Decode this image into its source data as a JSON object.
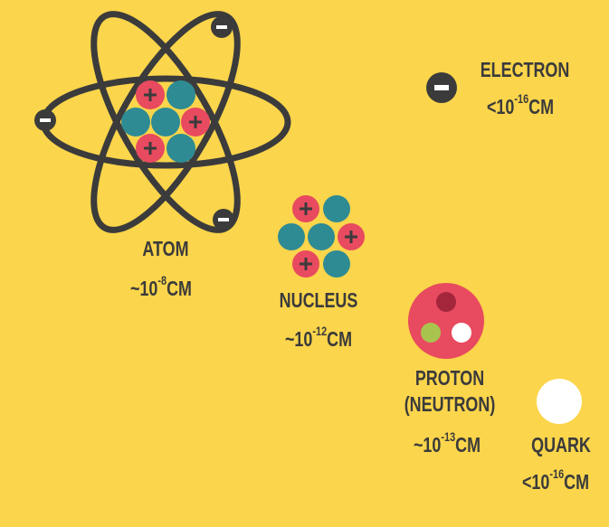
{
  "items": [
    {
      "name": "ATOM",
      "prefix": "~10",
      "exponent": "-8",
      "unit": "CM"
    },
    {
      "name": "NUCLEUS",
      "prefix": "~10",
      "exponent": "-12",
      "unit": "CM"
    },
    {
      "name": "PROTON",
      "subname": "(NEUTRON)",
      "prefix": "~10",
      "exponent": "-13",
      "unit": "CM"
    },
    {
      "name": "ELECTRON",
      "prefix": "<10",
      "exponent": "-16",
      "unit": "CM"
    },
    {
      "name": "QUARK",
      "prefix": "<10",
      "exponent": "-16",
      "unit": "CM"
    }
  ]
}
